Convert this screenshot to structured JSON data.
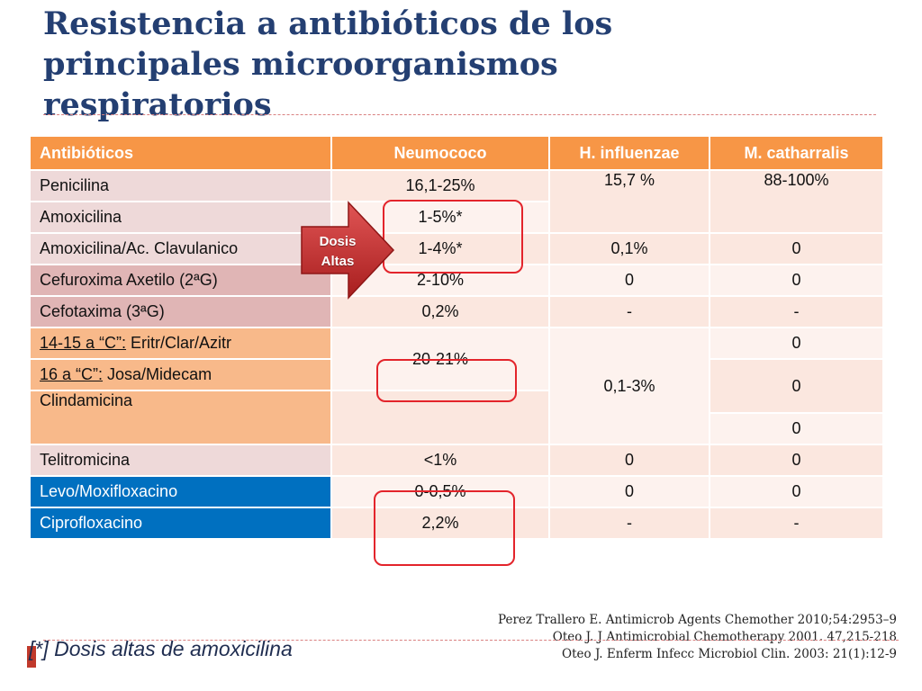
{
  "title_lines": [
    "Resistencia a antibióticos de los",
    "principales microorganismos",
    "respiratorios"
  ],
  "table": {
    "headers": [
      "Antibióticos",
      "Neumococo",
      "H. influenzae",
      "M. catharralis"
    ],
    "rows": {
      "penicilina": {
        "name": "Penicilina",
        "neumococo": "16,1-25%",
        "hinfluenzae": "15,7 %",
        "mcatharralis": "88-100%"
      },
      "amoxicilina": {
        "name": "Amoxicilina",
        "neumococo": "1-5%*"
      },
      "amoxi_clav": {
        "name": "Amoxicilina/Ac. Clavulanico",
        "neumococo": "1-4%*",
        "hinfluenzae": "0,1%",
        "mcatharralis": "0"
      },
      "cefuroxima": {
        "name": "Cefuroxima Axetilo (2ªG)",
        "neumococo": "2-10%",
        "hinfluenzae": "0",
        "mcatharralis": "0"
      },
      "cefotaxima": {
        "name": "Cefotaxima (3ªG)",
        "neumococo": "0,2%",
        "hinfluenzae": "-",
        "mcatharralis": "-"
      },
      "macrolidos14": {
        "name_link": "14-15 a “C”:",
        "name_rest": " Eritr/Clar/Azitr",
        "mcatharralis": "0"
      },
      "macrolidos16": {
        "name_link": "16 a “C”:",
        "name_rest": " Josa/Midecam",
        "mcatharralis": "0"
      },
      "macrolidos_group": {
        "neumococo": "20-21%",
        "hinfluenzae": "0,1-3%"
      },
      "clindamicina": {
        "name": "Clindamicina",
        "mcatharralis": "0"
      },
      "telitromicina": {
        "name": "Telitromicina",
        "neumococo": "<1%",
        "hinfluenzae": "0",
        "mcatharralis": "0"
      },
      "levo": {
        "name": "Levo/Moxifloxacino",
        "neumococo": "0-0,5%",
        "hinfluenzae": "0",
        "mcatharralis": "0"
      },
      "cipro": {
        "name": "Ciprofloxacino",
        "neumococo": "2,2%",
        "hinfluenzae": "-",
        "mcatharralis": "-"
      }
    }
  },
  "callout": {
    "line1": "Dosis",
    "line2": "Altas"
  },
  "references": [
    "Perez Trallero E. Antimicrob Agents Chemother 2010;54:2953–9",
    "Oteo J.  J Antimicrobial Chemotherapy 2001. 47,215-218",
    "Oteo J. Enferm Infecc Microbiol Clin. 2003: 21(1):12-9"
  ],
  "footnote": "[*]  Dosis altas de amoxicilina",
  "colors": {
    "title": "#243f72",
    "header": "#f79646",
    "highlight": "#e3242b",
    "quinolones": "#0070c0"
  }
}
